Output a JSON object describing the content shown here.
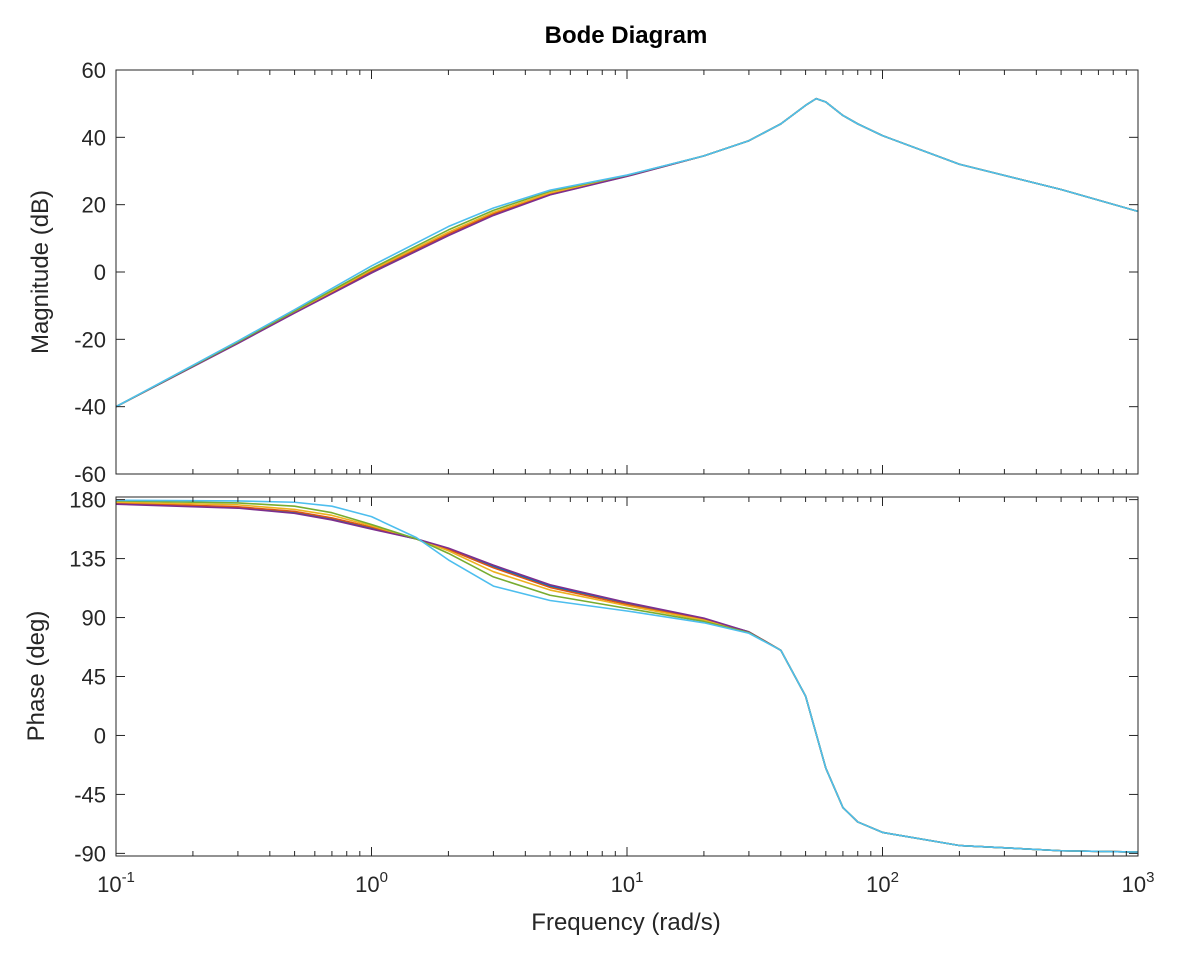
{
  "chart_data": {
    "type": "line",
    "title": "Bode Diagram",
    "xlabel": "Frequency  (rad/s)",
    "x_scale": "log",
    "xlim": [
      0.1,
      1000
    ],
    "x_ticks": [
      {
        "base": "10",
        "exp": "-1",
        "value": 0.1
      },
      {
        "base": "10",
        "exp": "0",
        "value": 1
      },
      {
        "base": "10",
        "exp": "1",
        "value": 10
      },
      {
        "base": "10",
        "exp": "2",
        "value": 100
      },
      {
        "base": "10",
        "exp": "3",
        "value": 1000
      }
    ],
    "grid": false,
    "legend": "none",
    "colors": [
      "#0072bd",
      "#d95319",
      "#edb120",
      "#7e2f8e",
      "#77ac30",
      "#4dbeee"
    ],
    "panels": [
      {
        "name": "magnitude",
        "ylabel": "Magnitude (dB)",
        "ylim": [
          -60,
          60
        ],
        "y_ticks": [
          "60",
          "40",
          "20",
          "0",
          "-20",
          "-40",
          "-60"
        ],
        "y_tick_values": [
          60,
          40,
          20,
          0,
          -20,
          -40,
          -60
        ],
        "series": [
          {
            "color": "#0072bd",
            "x": [
              0.1,
              0.3,
              0.5,
              1,
              2,
              3,
              5,
              10,
              20,
              30,
              40,
              50,
              55,
              60,
              70,
              80,
              100,
              200,
              500,
              1000
            ],
            "y": [
              -40,
              -21,
              -12,
              0,
              11,
              17,
              23,
              28.5,
              34.5,
              39,
              44,
              49.5,
              51.5,
              50.5,
              46.5,
              44,
              40.5,
              32,
              24.5,
              18
            ]
          },
          {
            "color": "#d95319",
            "x": [
              0.1,
              0.3,
              0.5,
              1,
              2,
              3,
              5,
              10,
              20,
              30,
              40,
              50,
              55,
              60,
              70,
              80,
              100,
              200,
              500,
              1000
            ],
            "y": [
              -40,
              -21,
              -12,
              0.3,
              11.3,
              17.3,
              23.2,
              28.5,
              34.5,
              39,
              44,
              49.5,
              51.5,
              50.5,
              46.5,
              44,
              40.5,
              32,
              24.5,
              18
            ]
          },
          {
            "color": "#edb120",
            "x": [
              0.1,
              0.3,
              0.5,
              1,
              2,
              3,
              5,
              10,
              20,
              30,
              40,
              50,
              55,
              60,
              70,
              80,
              100,
              200,
              500,
              1000
            ],
            "y": [
              -40,
              -21,
              -11.8,
              0.6,
              11.8,
              17.7,
              23.5,
              28.6,
              34.5,
              39,
              44,
              49.5,
              51.5,
              50.5,
              46.5,
              44,
              40.5,
              32,
              24.5,
              18
            ]
          },
          {
            "color": "#7e2f8e",
            "x": [
              0.1,
              0.3,
              0.5,
              1,
              2,
              3,
              5,
              10,
              20,
              30,
              40,
              50,
              55,
              60,
              70,
              80,
              100,
              200,
              500,
              1000
            ],
            "y": [
              -40,
              -21.2,
              -12.2,
              -0.3,
              10.8,
              16.8,
              22.9,
              28.4,
              34.5,
              39,
              44,
              49.5,
              51.5,
              50.5,
              46.5,
              44,
              40.5,
              32,
              24.5,
              18
            ]
          },
          {
            "color": "#77ac30",
            "x": [
              0.1,
              0.3,
              0.5,
              1,
              2,
              3,
              5,
              10,
              20,
              30,
              40,
              50,
              55,
              60,
              70,
              80,
              100,
              200,
              500,
              1000
            ],
            "y": [
              -40,
              -20.8,
              -11.6,
              1,
              12.5,
              18.3,
              24,
              28.7,
              34.5,
              39,
              44,
              49.5,
              51.5,
              50.5,
              46.5,
              44,
              40.5,
              32,
              24.5,
              18
            ]
          },
          {
            "color": "#4dbeee",
            "x": [
              0.1,
              0.3,
              0.5,
              1,
              2,
              3,
              5,
              10,
              20,
              30,
              40,
              50,
              55,
              60,
              70,
              80,
              100,
              200,
              500,
              1000
            ],
            "y": [
              -40,
              -20.5,
              -11.2,
              1.8,
              13.5,
              19,
              24.3,
              28.8,
              34.5,
              39,
              44,
              49.5,
              51.5,
              50.5,
              46.5,
              44,
              40.5,
              32,
              24.5,
              18
            ]
          }
        ]
      },
      {
        "name": "phase",
        "ylabel": "Phase (deg)",
        "ylim": [
          -92,
          182
        ],
        "y_ticks": [
          "180",
          "135",
          "90",
          "45",
          "0",
          "-45",
          "-90"
        ],
        "y_tick_values": [
          180,
          135,
          90,
          45,
          0,
          -45,
          -90
        ],
        "series": [
          {
            "color": "#0072bd",
            "x": [
              0.1,
              0.3,
              0.5,
              0.7,
              1,
              1.5,
              2,
              3,
              5,
              10,
              20,
              30,
              40,
              50,
              60,
              70,
              80,
              100,
              200,
              500,
              1000
            ],
            "y": [
              177,
              174,
              170,
              165,
              158,
              150,
              142,
              129,
              114,
              101,
              89,
              79,
              65,
              30,
              -25,
              -55,
              -66,
              -74,
              -84,
              -88,
              -89
            ]
          },
          {
            "color": "#d95319",
            "x": [
              0.1,
              0.3,
              0.5,
              0.7,
              1,
              1.5,
              2,
              3,
              5,
              10,
              20,
              30,
              40,
              50,
              60,
              70,
              80,
              100,
              200,
              500,
              1000
            ],
            "y": [
              177.5,
              174.5,
              171,
              166,
              159,
              150,
              142,
              128,
              113,
              100,
              88.5,
              79,
              65,
              30,
              -25,
              -55,
              -66,
              -74,
              -84,
              -88,
              -89
            ]
          },
          {
            "color": "#edb120",
            "x": [
              0.1,
              0.3,
              0.5,
              0.7,
              1,
              1.5,
              2,
              3,
              5,
              10,
              20,
              30,
              40,
              50,
              60,
              70,
              80,
              100,
              200,
              500,
              1000
            ],
            "y": [
              178,
              176,
              172.5,
              168,
              160,
              150,
              141,
              125,
              111,
              99,
              88,
              79,
              65,
              30,
              -25,
              -55,
              -66,
              -74,
              -84,
              -88,
              -89
            ]
          },
          {
            "color": "#7e2f8e",
            "x": [
              0.1,
              0.3,
              0.5,
              0.7,
              1,
              1.5,
              2,
              3,
              5,
              10,
              20,
              30,
              40,
              50,
              60,
              70,
              80,
              100,
              200,
              500,
              1000
            ],
            "y": [
              176.5,
              173.5,
              169.5,
              164.5,
              157.5,
              150,
              143,
              130,
              115,
              101.5,
              89.5,
              79,
              65,
              30,
              -25,
              -55,
              -66,
              -74,
              -84,
              -88,
              -89
            ]
          },
          {
            "color": "#77ac30",
            "x": [
              0.1,
              0.3,
              0.5,
              0.7,
              1,
              1.5,
              2,
              3,
              5,
              10,
              20,
              30,
              40,
              50,
              60,
              70,
              80,
              100,
              200,
              500,
              1000
            ],
            "y": [
              179,
              177.5,
              175,
              170,
              161,
              150,
              139,
              121,
              107,
              97,
              87,
              78.5,
              65,
              30,
              -25,
              -55,
              -66,
              -74,
              -84,
              -88,
              -89
            ]
          },
          {
            "color": "#4dbeee",
            "x": [
              0.1,
              0.3,
              0.5,
              0.7,
              1,
              1.5,
              2,
              3,
              5,
              10,
              20,
              30,
              40,
              50,
              60,
              70,
              80,
              100,
              200,
              500,
              1000
            ],
            "y": [
              179.5,
              179,
              178,
              175,
              167,
              151,
              134,
              114,
              103,
              95,
              86,
              78,
              65,
              30,
              -25,
              -55,
              -66,
              -74,
              -84,
              -88,
              -89
            ]
          }
        ]
      }
    ]
  }
}
